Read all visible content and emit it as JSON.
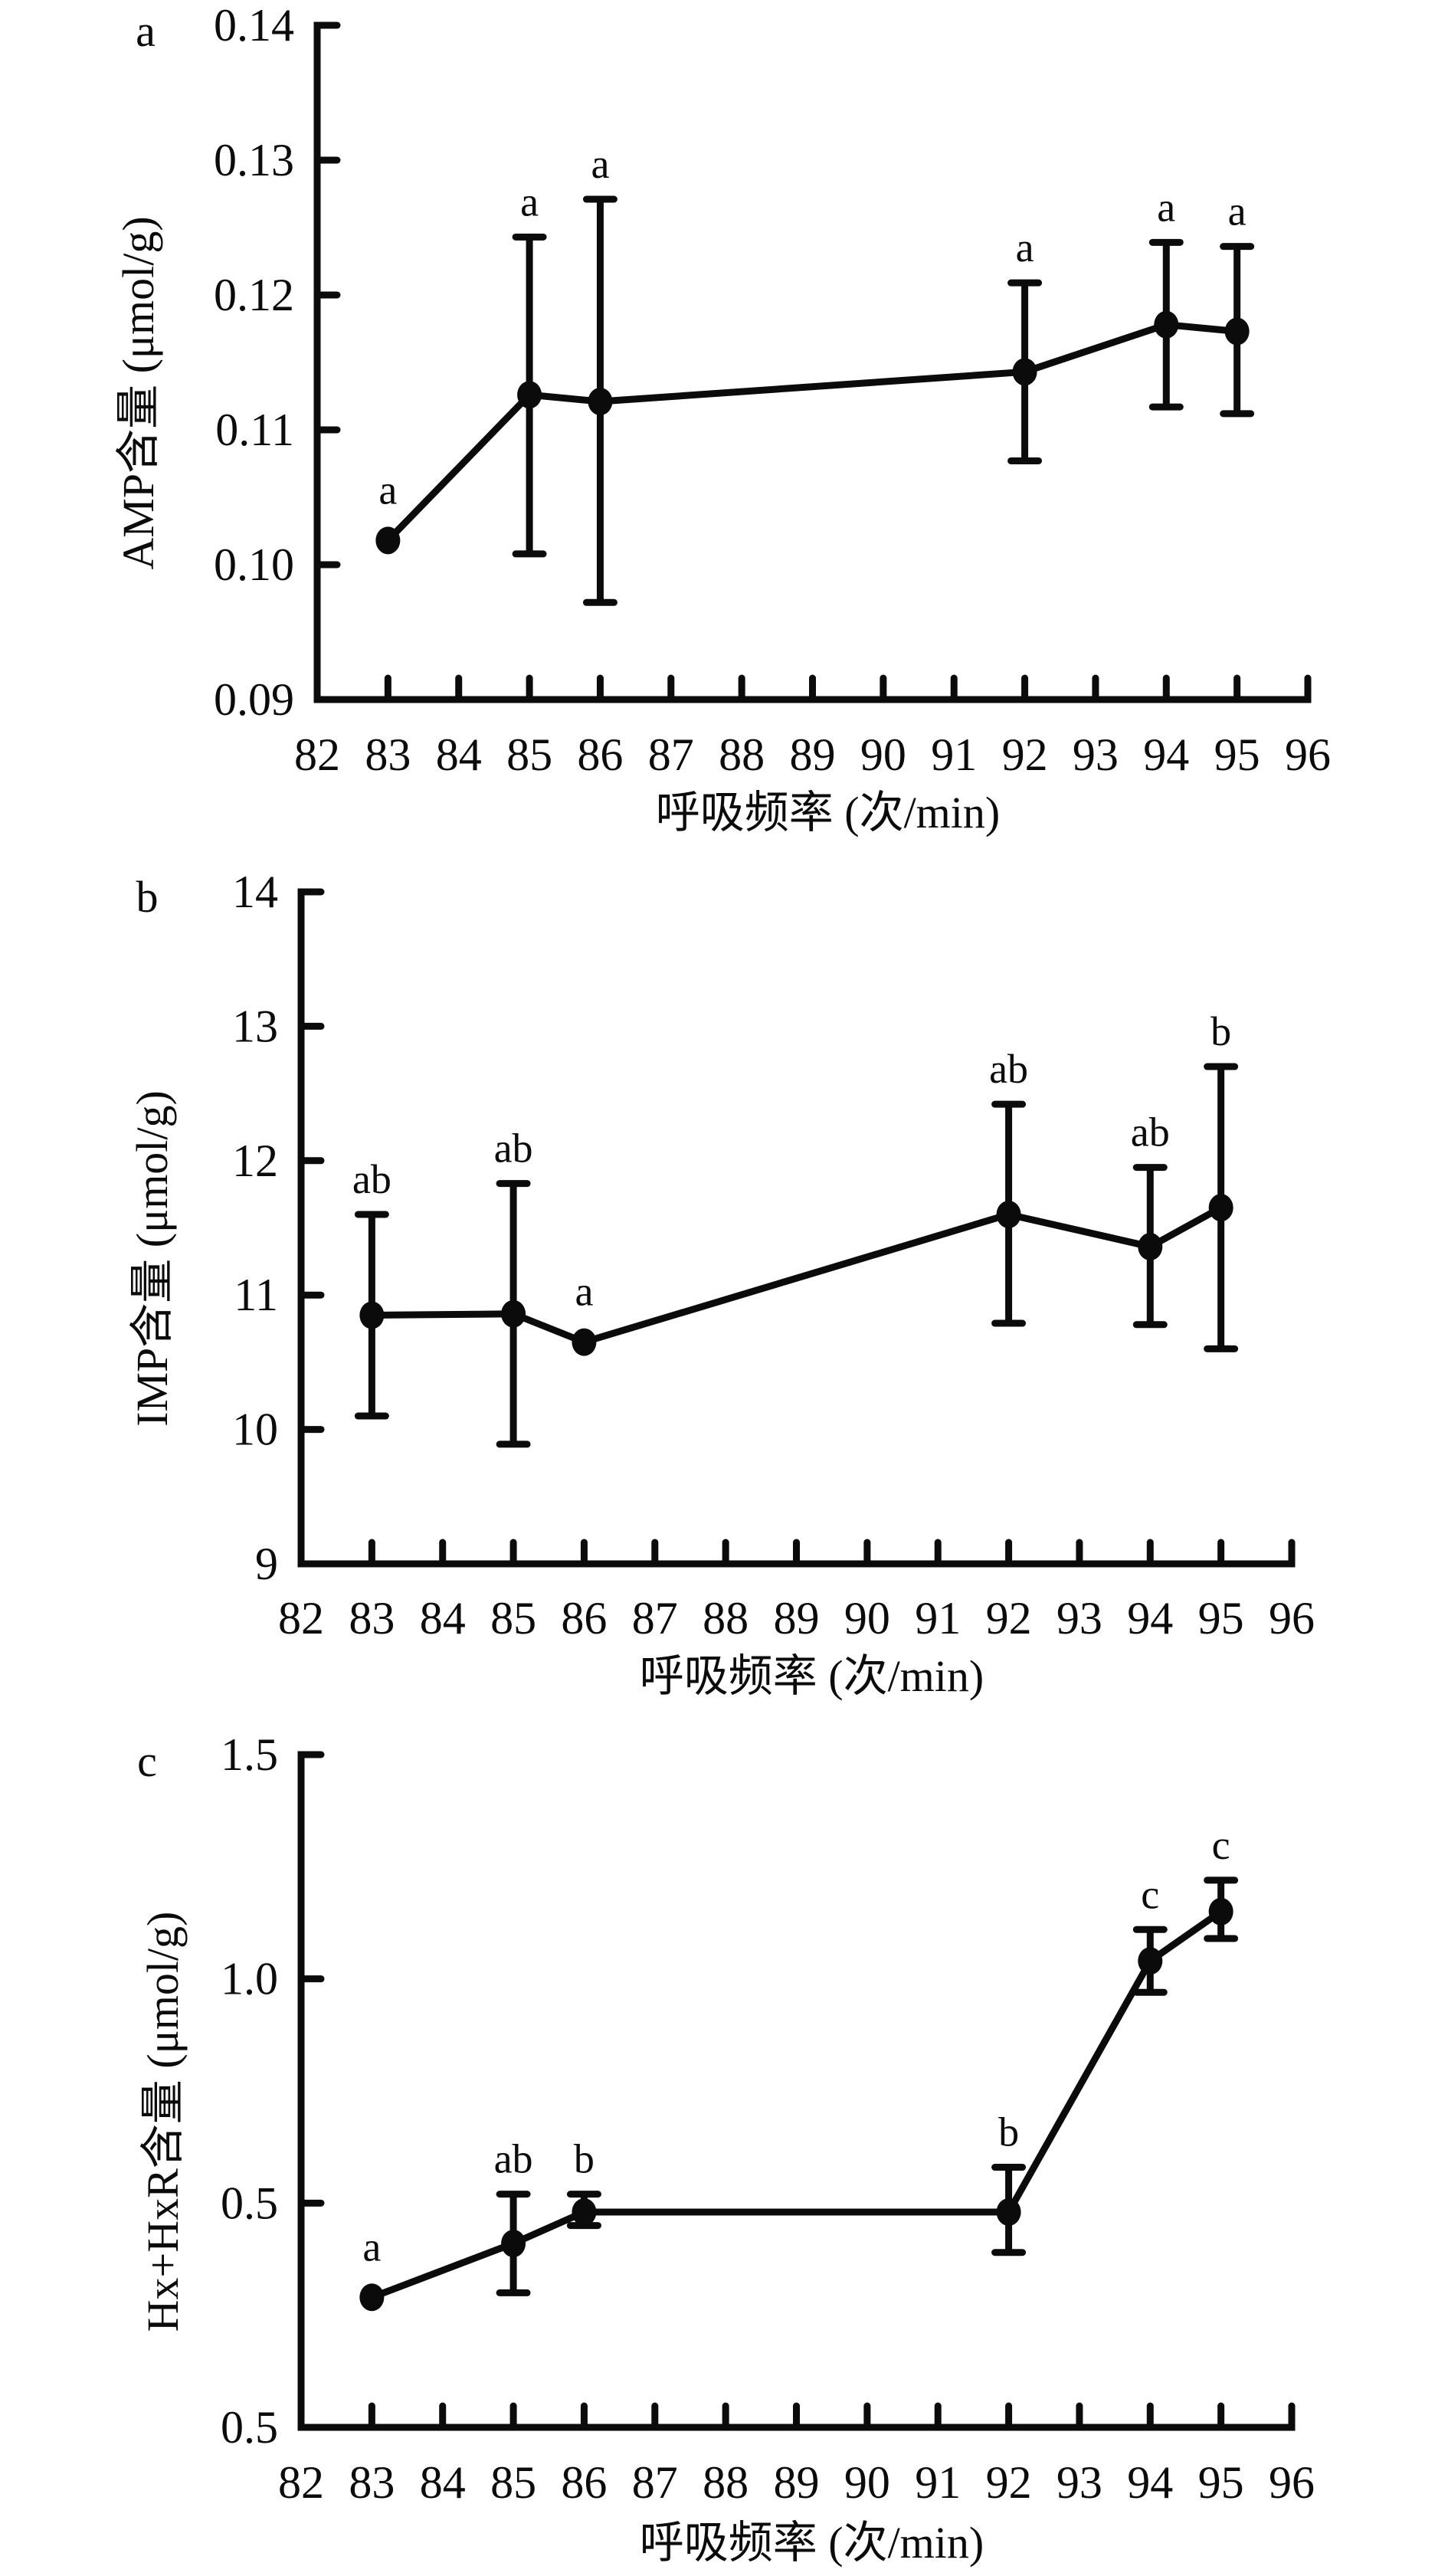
{
  "chart_data": [
    {
      "type": "line",
      "panel": "a",
      "title": "",
      "xlabel": "呼吸频率 (次/min)",
      "ylabel": "AMP含量 (μmol/g)",
      "x_ticks": [
        "82",
        "83",
        "84",
        "85",
        "86",
        "87",
        "88",
        "89",
        "90",
        "91",
        "92",
        "93",
        "94",
        "95",
        "96"
      ],
      "xlim": [
        82,
        96
      ],
      "y_ticks": [
        "0.09",
        "0.10",
        "0.11",
        "0.12",
        "0.13",
        "0.14"
      ],
      "ylim": [
        0.09,
        0.14
      ],
      "grid": false,
      "series": [
        {
          "name": "AMP",
          "x": [
            83,
            85,
            86,
            92,
            94,
            95
          ],
          "y": [
            0.1018,
            0.1126,
            0.1121,
            0.1143,
            0.1178,
            0.1173
          ],
          "err_low": [
            0.1018,
            0.1008,
            0.0972,
            0.1077,
            0.1117,
            0.1112
          ],
          "err_high": [
            0.1018,
            0.1243,
            0.1271,
            0.1209,
            0.1239,
            0.1236
          ],
          "labels": [
            "a",
            "a",
            "a",
            "a",
            "a",
            "a"
          ]
        }
      ]
    },
    {
      "type": "line",
      "panel": "b",
      "title": "",
      "xlabel": "呼吸频率 (次/min)",
      "ylabel": "IMP含量 (μmol/g)",
      "x_ticks": [
        "82",
        "83",
        "84",
        "85",
        "86",
        "87",
        "88",
        "89",
        "90",
        "91",
        "92",
        "93",
        "94",
        "95",
        "96"
      ],
      "xlim": [
        82,
        96
      ],
      "y_ticks": [
        "9",
        "10",
        "11",
        "12",
        "13",
        "14"
      ],
      "ylim": [
        9,
        14
      ],
      "grid": false,
      "series": [
        {
          "name": "IMP",
          "x": [
            83,
            85,
            86,
            92,
            94,
            95
          ],
          "y": [
            10.85,
            10.86,
            10.65,
            11.6,
            11.36,
            11.65
          ],
          "err_low": [
            10.1,
            9.89,
            10.65,
            10.79,
            10.78,
            10.6
          ],
          "err_high": [
            11.6,
            11.83,
            10.65,
            12.42,
            11.95,
            12.7
          ],
          "labels": [
            "ab",
            "ab",
            "a",
            "ab",
            "ab",
            "b"
          ]
        }
      ]
    },
    {
      "type": "line",
      "panel": "c",
      "title": "",
      "xlabel": "呼吸频率 (次/min)",
      "ylabel": "Hx+HxR含量 (μmol/g)",
      "x_ticks": [
        "82",
        "83",
        "84",
        "85",
        "86",
        "87",
        "88",
        "89",
        "90",
        "91",
        "92",
        "93",
        "94",
        "95",
        "96"
      ],
      "xlim": [
        82,
        96
      ],
      "y_ticks": [
        "0.5",
        "0.5",
        "1.0",
        "1.5"
      ],
      "ylim": [
        0.0,
        1.5
      ],
      "grid": false,
      "series": [
        {
          "name": "Hx+HxR",
          "x": [
            83,
            85,
            86,
            92,
            94,
            95
          ],
          "y": [
            0.29,
            0.41,
            0.48,
            0.48,
            1.04,
            1.15
          ],
          "err_low": [
            0.29,
            0.3,
            0.45,
            0.39,
            0.97,
            1.09
          ],
          "err_high": [
            0.29,
            0.52,
            0.52,
            0.58,
            1.11,
            1.22
          ],
          "labels": [
            "a",
            "ab",
            "b",
            "b",
            "c",
            "c"
          ]
        }
      ]
    }
  ]
}
